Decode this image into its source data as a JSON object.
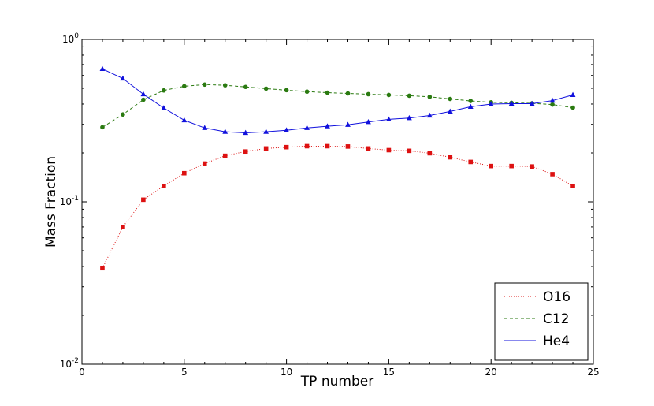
{
  "chart_data": {
    "type": "line",
    "title": "",
    "xlabel": "TP number",
    "ylabel": "Mass Fraction",
    "xlim": [
      0,
      25
    ],
    "ylim": [
      0.01,
      1
    ],
    "yscale": "log",
    "grid": false,
    "legend_position": "bottom-right",
    "x_ticks": [
      "0",
      "5",
      "10",
      "15",
      "20",
      "25"
    ],
    "y_ticks": [
      {
        "base": "10",
        "exp": "-2"
      },
      {
        "base": "10",
        "exp": "-1"
      },
      {
        "base": "10",
        "exp": "0"
      }
    ],
    "x": [
      1,
      2,
      3,
      4,
      5,
      6,
      7,
      8,
      9,
      10,
      11,
      12,
      13,
      14,
      15,
      16,
      17,
      18,
      19,
      20,
      21,
      22,
      23,
      24
    ],
    "series": [
      {
        "name": "O16",
        "color": "#dd1111",
        "line_style": "dotted",
        "marker": "square",
        "values": [
          0.039,
          0.07,
          0.103,
          0.125,
          0.15,
          0.172,
          0.192,
          0.204,
          0.213,
          0.217,
          0.22,
          0.22,
          0.219,
          0.213,
          0.208,
          0.206,
          0.199,
          0.188,
          0.176,
          0.166,
          0.166,
          0.165,
          0.148,
          0.125
        ]
      },
      {
        "name": "C12",
        "color": "#2a7a10",
        "line_style": "dashed",
        "marker": "circle",
        "values": [
          0.288,
          0.345,
          0.425,
          0.485,
          0.515,
          0.527,
          0.522,
          0.51,
          0.498,
          0.487,
          0.477,
          0.47,
          0.465,
          0.46,
          0.455,
          0.45,
          0.443,
          0.43,
          0.418,
          0.41,
          0.407,
          0.404,
          0.397,
          0.38
        ]
      },
      {
        "name": "He4",
        "color": "#1111dd",
        "line_style": "solid",
        "marker": "triangle",
        "values": [
          0.658,
          0.575,
          0.46,
          0.378,
          0.318,
          0.285,
          0.27,
          0.266,
          0.27,
          0.276,
          0.285,
          0.292,
          0.298,
          0.31,
          0.322,
          0.328,
          0.34,
          0.36,
          0.385,
          0.4,
          0.402,
          0.402,
          0.42,
          0.455
        ]
      }
    ]
  }
}
